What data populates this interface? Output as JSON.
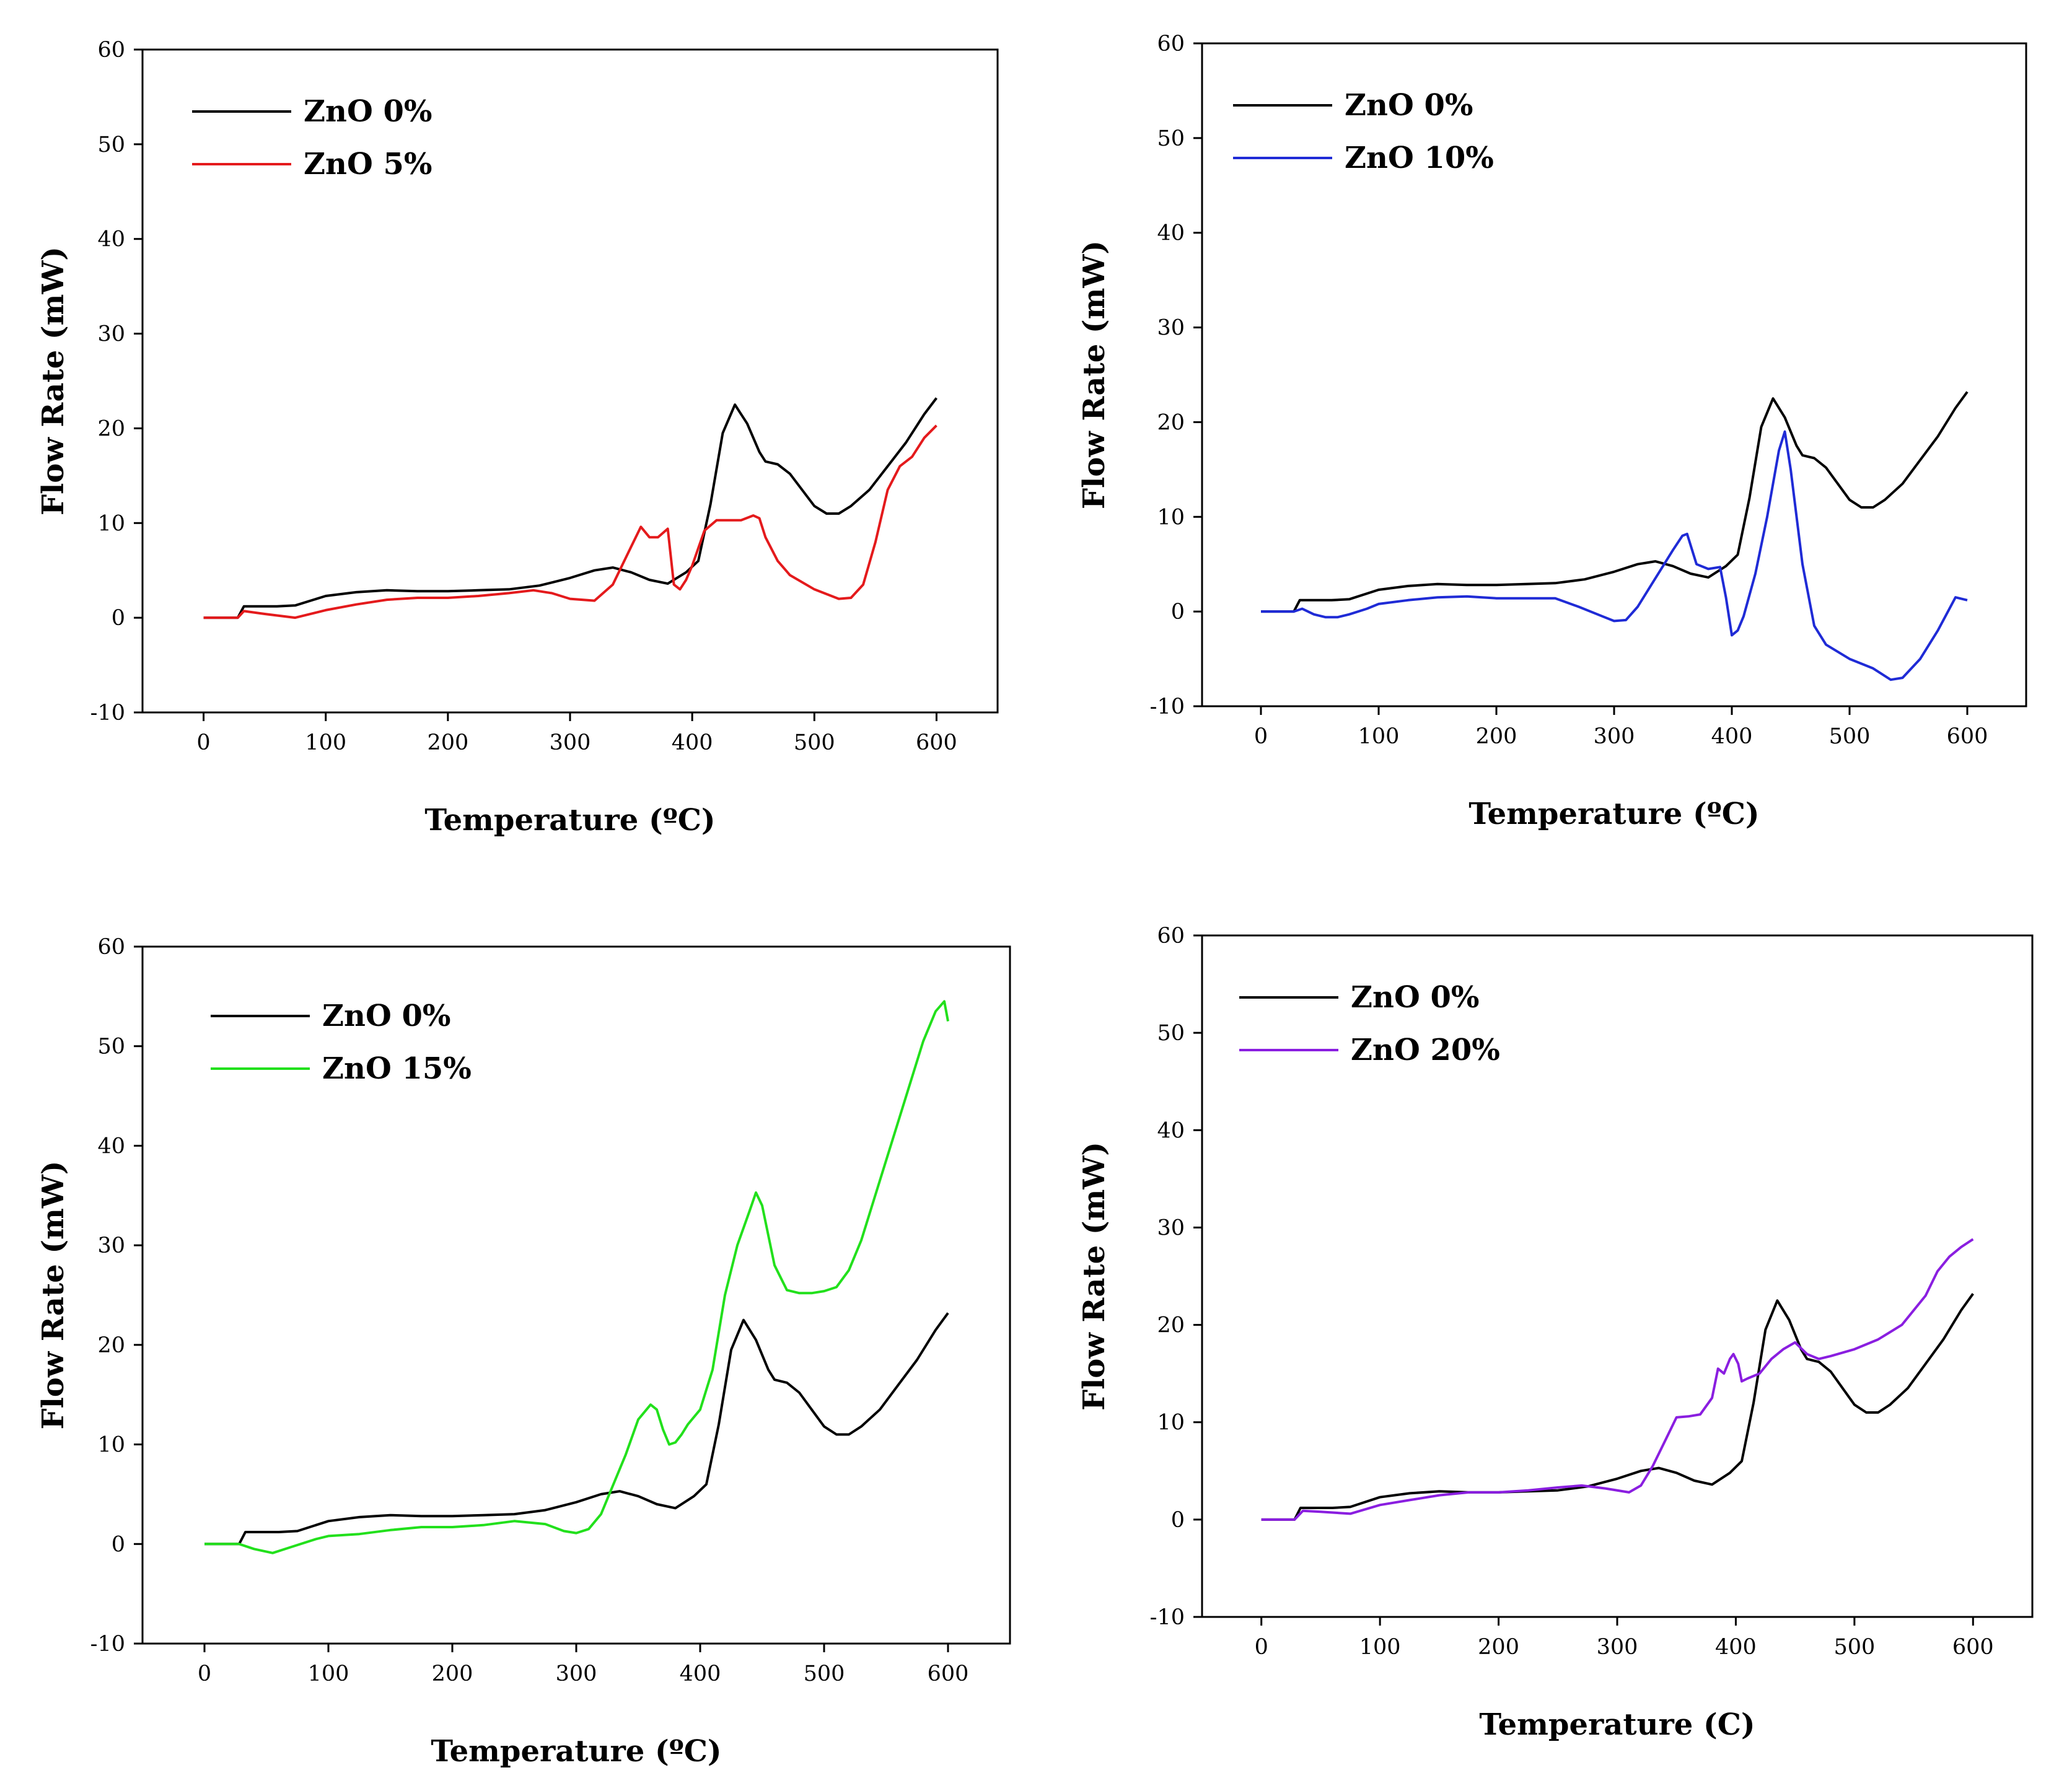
{
  "chart_data": [
    {
      "type": "line",
      "xlabel": "Temperature (ºC)",
      "ylabel": "Flow Rate (mW)",
      "xlim": [
        -50,
        650
      ],
      "ylim": [
        -10,
        60
      ],
      "xticks": [
        0,
        100,
        200,
        300,
        400,
        500,
        600
      ],
      "yticks": [
        -10,
        0,
        10,
        20,
        30,
        40,
        50,
        60
      ],
      "legend_position": "top-left",
      "series": [
        {
          "name": "ZnO 0%",
          "color": "#000000",
          "x": [
            0,
            28,
            33,
            40,
            60,
            75,
            100,
            125,
            150,
            175,
            200,
            225,
            250,
            275,
            300,
            320,
            335,
            350,
            365,
            380,
            395,
            405,
            415,
            425,
            435,
            445,
            455,
            460,
            470,
            480,
            490,
            500,
            510,
            520,
            530,
            545,
            560,
            575,
            590,
            600
          ],
          "y": [
            0,
            0,
            1.2,
            1.2,
            1.2,
            1.3,
            2.3,
            2.7,
            2.9,
            2.8,
            2.8,
            2.9,
            3.0,
            3.4,
            4.2,
            5.0,
            5.3,
            4.8,
            4.0,
            3.6,
            4.8,
            6.0,
            12.0,
            19.5,
            22.5,
            20.5,
            17.5,
            16.5,
            16.2,
            15.2,
            13.5,
            11.8,
            11.0,
            11.0,
            11.8,
            13.5,
            16.0,
            18.5,
            21.5,
            23.2
          ]
        },
        {
          "name": "ZnO 5%",
          "color": "#e41a1c",
          "x": [
            0,
            28,
            33,
            50,
            75,
            100,
            125,
            150,
            175,
            200,
            225,
            250,
            270,
            285,
            300,
            320,
            335,
            350,
            358,
            365,
            372,
            380,
            385,
            390,
            395,
            400,
            410,
            420,
            430,
            440,
            450,
            455,
            460,
            470,
            480,
            500,
            520,
            530,
            540,
            550,
            560,
            570,
            580,
            590,
            600
          ],
          "y": [
            0,
            0,
            0.7,
            0.4,
            0.0,
            0.8,
            1.4,
            1.9,
            2.1,
            2.1,
            2.3,
            2.6,
            2.9,
            2.6,
            2.0,
            1.8,
            3.5,
            7.5,
            9.6,
            8.5,
            8.5,
            9.4,
            3.5,
            3.0,
            4.0,
            5.5,
            9.2,
            10.3,
            10.3,
            10.3,
            10.8,
            10.5,
            8.5,
            6.0,
            4.5,
            3.0,
            2.0,
            2.1,
            3.5,
            8.0,
            13.5,
            16.0,
            17.0,
            19.0,
            20.3
          ]
        }
      ]
    },
    {
      "type": "line",
      "xlabel": "Temperature (ºC)",
      "ylabel": "Flow Rate (mW)",
      "xlim": [
        -50,
        650
      ],
      "ylim": [
        -10,
        60
      ],
      "xticks": [
        0,
        100,
        200,
        300,
        400,
        500,
        600
      ],
      "yticks": [
        -10,
        0,
        10,
        20,
        30,
        40,
        50,
        60
      ],
      "legend_position": "top-left",
      "series": [
        {
          "name": "ZnO 0%",
          "color": "#000000",
          "x": [
            0,
            28,
            33,
            40,
            60,
            75,
            100,
            125,
            150,
            175,
            200,
            225,
            250,
            275,
            300,
            320,
            335,
            350,
            365,
            380,
            395,
            405,
            415,
            425,
            435,
            445,
            455,
            460,
            470,
            480,
            490,
            500,
            510,
            520,
            530,
            545,
            560,
            575,
            590,
            600
          ],
          "y": [
            0,
            0,
            1.2,
            1.2,
            1.2,
            1.3,
            2.3,
            2.7,
            2.9,
            2.8,
            2.8,
            2.9,
            3.0,
            3.4,
            4.2,
            5.0,
            5.3,
            4.8,
            4.0,
            3.6,
            4.8,
            6.0,
            12.0,
            19.5,
            22.5,
            20.5,
            17.5,
            16.5,
            16.2,
            15.2,
            13.5,
            11.8,
            11.0,
            11.0,
            11.8,
            13.5,
            16.0,
            18.5,
            21.5,
            23.2
          ]
        },
        {
          "name": "ZnO 10%",
          "color": "#1f2bd6",
          "x": [
            0,
            28,
            35,
            45,
            55,
            65,
            75,
            90,
            100,
            125,
            150,
            175,
            200,
            225,
            250,
            270,
            290,
            300,
            310,
            320,
            330,
            340,
            350,
            358,
            362,
            370,
            380,
            390,
            395,
            400,
            405,
            410,
            420,
            430,
            440,
            445,
            450,
            460,
            470,
            480,
            500,
            520,
            535,
            545,
            560,
            575,
            590,
            600
          ],
          "y": [
            0,
            0,
            0.3,
            -0.3,
            -0.6,
            -0.6,
            -0.3,
            0.3,
            0.8,
            1.2,
            1.5,
            1.6,
            1.4,
            1.4,
            1.4,
            0.5,
            -0.5,
            -1.0,
            -0.9,
            0.5,
            2.5,
            4.5,
            6.5,
            8.0,
            8.2,
            5.0,
            4.5,
            4.7,
            1.5,
            -2.5,
            -2.0,
            -0.5,
            4.0,
            10.0,
            17.0,
            19.0,
            15.0,
            5.0,
            -1.5,
            -3.5,
            -5.0,
            -6.0,
            -7.2,
            -7.0,
            -5.0,
            -2.0,
            1.5,
            1.2
          ]
        }
      ]
    },
    {
      "type": "line",
      "xlabel": "Temperature (ºC)",
      "ylabel": "Flow Rate (mW)",
      "xlim": [
        -50,
        650
      ],
      "ylim": [
        -10,
        60
      ],
      "xticks": [
        0,
        100,
        200,
        300,
        400,
        500,
        600
      ],
      "yticks": [
        -10,
        0,
        10,
        20,
        30,
        40,
        50,
        60
      ],
      "legend_position": "top-left",
      "series": [
        {
          "name": "ZnO 0%",
          "color": "#000000",
          "x": [
            0,
            28,
            33,
            40,
            60,
            75,
            100,
            125,
            150,
            175,
            200,
            225,
            250,
            275,
            300,
            320,
            335,
            350,
            365,
            380,
            395,
            405,
            415,
            425,
            435,
            445,
            455,
            460,
            470,
            480,
            490,
            500,
            510,
            520,
            530,
            545,
            560,
            575,
            590,
            600
          ],
          "y": [
            0,
            0,
            1.2,
            1.2,
            1.2,
            1.3,
            2.3,
            2.7,
            2.9,
            2.8,
            2.8,
            2.9,
            3.0,
            3.4,
            4.2,
            5.0,
            5.3,
            4.8,
            4.0,
            3.6,
            4.8,
            6.0,
            12.0,
            19.5,
            22.5,
            20.5,
            17.5,
            16.5,
            16.2,
            15.2,
            13.5,
            11.8,
            11.0,
            11.0,
            11.8,
            13.5,
            16.0,
            18.5,
            21.5,
            23.2
          ]
        },
        {
          "name": "ZnO 15%",
          "color": "#22e01c",
          "x": [
            0,
            28,
            40,
            55,
            70,
            90,
            100,
            125,
            150,
            175,
            200,
            225,
            250,
            275,
            290,
            300,
            310,
            320,
            330,
            340,
            350,
            360,
            365,
            370,
            375,
            380,
            385,
            390,
            400,
            410,
            420,
            430,
            440,
            445,
            450,
            460,
            470,
            480,
            490,
            500,
            510,
            520,
            530,
            540,
            550,
            560,
            570,
            580,
            590,
            597,
            600
          ],
          "y": [
            0,
            0,
            -0.5,
            -0.9,
            -0.3,
            0.5,
            0.8,
            1.0,
            1.4,
            1.7,
            1.7,
            1.9,
            2.3,
            2.0,
            1.3,
            1.1,
            1.5,
            3.0,
            6.0,
            9.0,
            12.5,
            14.0,
            13.5,
            11.5,
            10.0,
            10.2,
            11.0,
            12.0,
            13.5,
            17.5,
            25.0,
            30.0,
            33.5,
            35.3,
            34.0,
            28.0,
            25.5,
            25.2,
            25.2,
            25.4,
            25.8,
            27.5,
            30.5,
            34.5,
            38.5,
            42.5,
            46.5,
            50.5,
            53.5,
            54.5,
            52.5
          ]
        }
      ]
    },
    {
      "type": "line",
      "xlabel": "Temperature (C)",
      "ylabel": "Flow Rate (mW)",
      "xlim": [
        -50,
        650
      ],
      "ylim": [
        -10,
        60
      ],
      "xticks": [
        0,
        100,
        200,
        300,
        400,
        500,
        600
      ],
      "yticks": [
        -10,
        0,
        10,
        20,
        30,
        40,
        50,
        60
      ],
      "legend_position": "top-left",
      "series": [
        {
          "name": "ZnO 0%",
          "color": "#000000",
          "x": [
            0,
            28,
            33,
            40,
            60,
            75,
            100,
            125,
            150,
            175,
            200,
            225,
            250,
            275,
            300,
            320,
            335,
            350,
            365,
            380,
            395,
            405,
            415,
            425,
            435,
            445,
            455,
            460,
            470,
            480,
            490,
            500,
            510,
            520,
            530,
            545,
            560,
            575,
            590,
            600
          ],
          "y": [
            0,
            0,
            1.2,
            1.2,
            1.2,
            1.3,
            2.3,
            2.7,
            2.9,
            2.8,
            2.8,
            2.9,
            3.0,
            3.4,
            4.2,
            5.0,
            5.3,
            4.8,
            4.0,
            3.6,
            4.8,
            6.0,
            12.0,
            19.5,
            22.5,
            20.5,
            17.5,
            16.5,
            16.2,
            15.2,
            13.5,
            11.8,
            11.0,
            11.0,
            11.8,
            13.5,
            16.0,
            18.5,
            21.5,
            23.2
          ]
        },
        {
          "name": "ZnO 20%",
          "color": "#8a1ee0",
          "x": [
            0,
            28,
            35,
            50,
            75,
            100,
            125,
            150,
            175,
            200,
            225,
            250,
            270,
            290,
            310,
            320,
            330,
            340,
            350,
            360,
            370,
            380,
            385,
            390,
            395,
            398,
            402,
            405,
            410,
            420,
            430,
            440,
            450,
            460,
            470,
            480,
            500,
            520,
            540,
            560,
            570,
            580,
            590,
            600
          ],
          "y": [
            0,
            0,
            0.9,
            0.8,
            0.6,
            1.5,
            2.0,
            2.5,
            2.8,
            2.8,
            3.0,
            3.3,
            3.5,
            3.2,
            2.8,
            3.5,
            5.5,
            8.0,
            10.5,
            10.6,
            10.8,
            12.5,
            15.5,
            15.0,
            16.5,
            17.0,
            16.0,
            14.2,
            14.5,
            15.0,
            16.5,
            17.5,
            18.2,
            17.0,
            16.5,
            16.8,
            17.5,
            18.5,
            20.0,
            23.0,
            25.5,
            27.0,
            28.0,
            28.8
          ]
        }
      ]
    }
  ]
}
